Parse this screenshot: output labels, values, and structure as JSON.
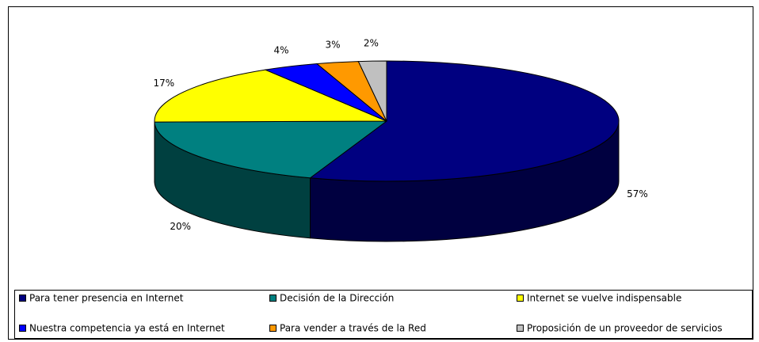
{
  "chart_data": {
    "type": "pie",
    "labels": [
      "Para tener presencia en Internet",
      "Decisión de la Dirección",
      "Internet se vuelve indispensable",
      "Nuestra competencia ya está en Internet",
      "Para vender a través de la Red",
      "Proposición de un proveedor de servicios"
    ],
    "values": [
      57,
      20,
      17,
      4,
      3,
      2
    ],
    "value_labels": [
      "57%",
      "20%",
      "17%",
      "4%",
      "3%",
      "2%"
    ],
    "colors": [
      "#000080",
      "#008080",
      "#ffff00",
      "#0000ff",
      "#ff9900",
      "#c0c0c0"
    ],
    "legend": "bottom"
  }
}
